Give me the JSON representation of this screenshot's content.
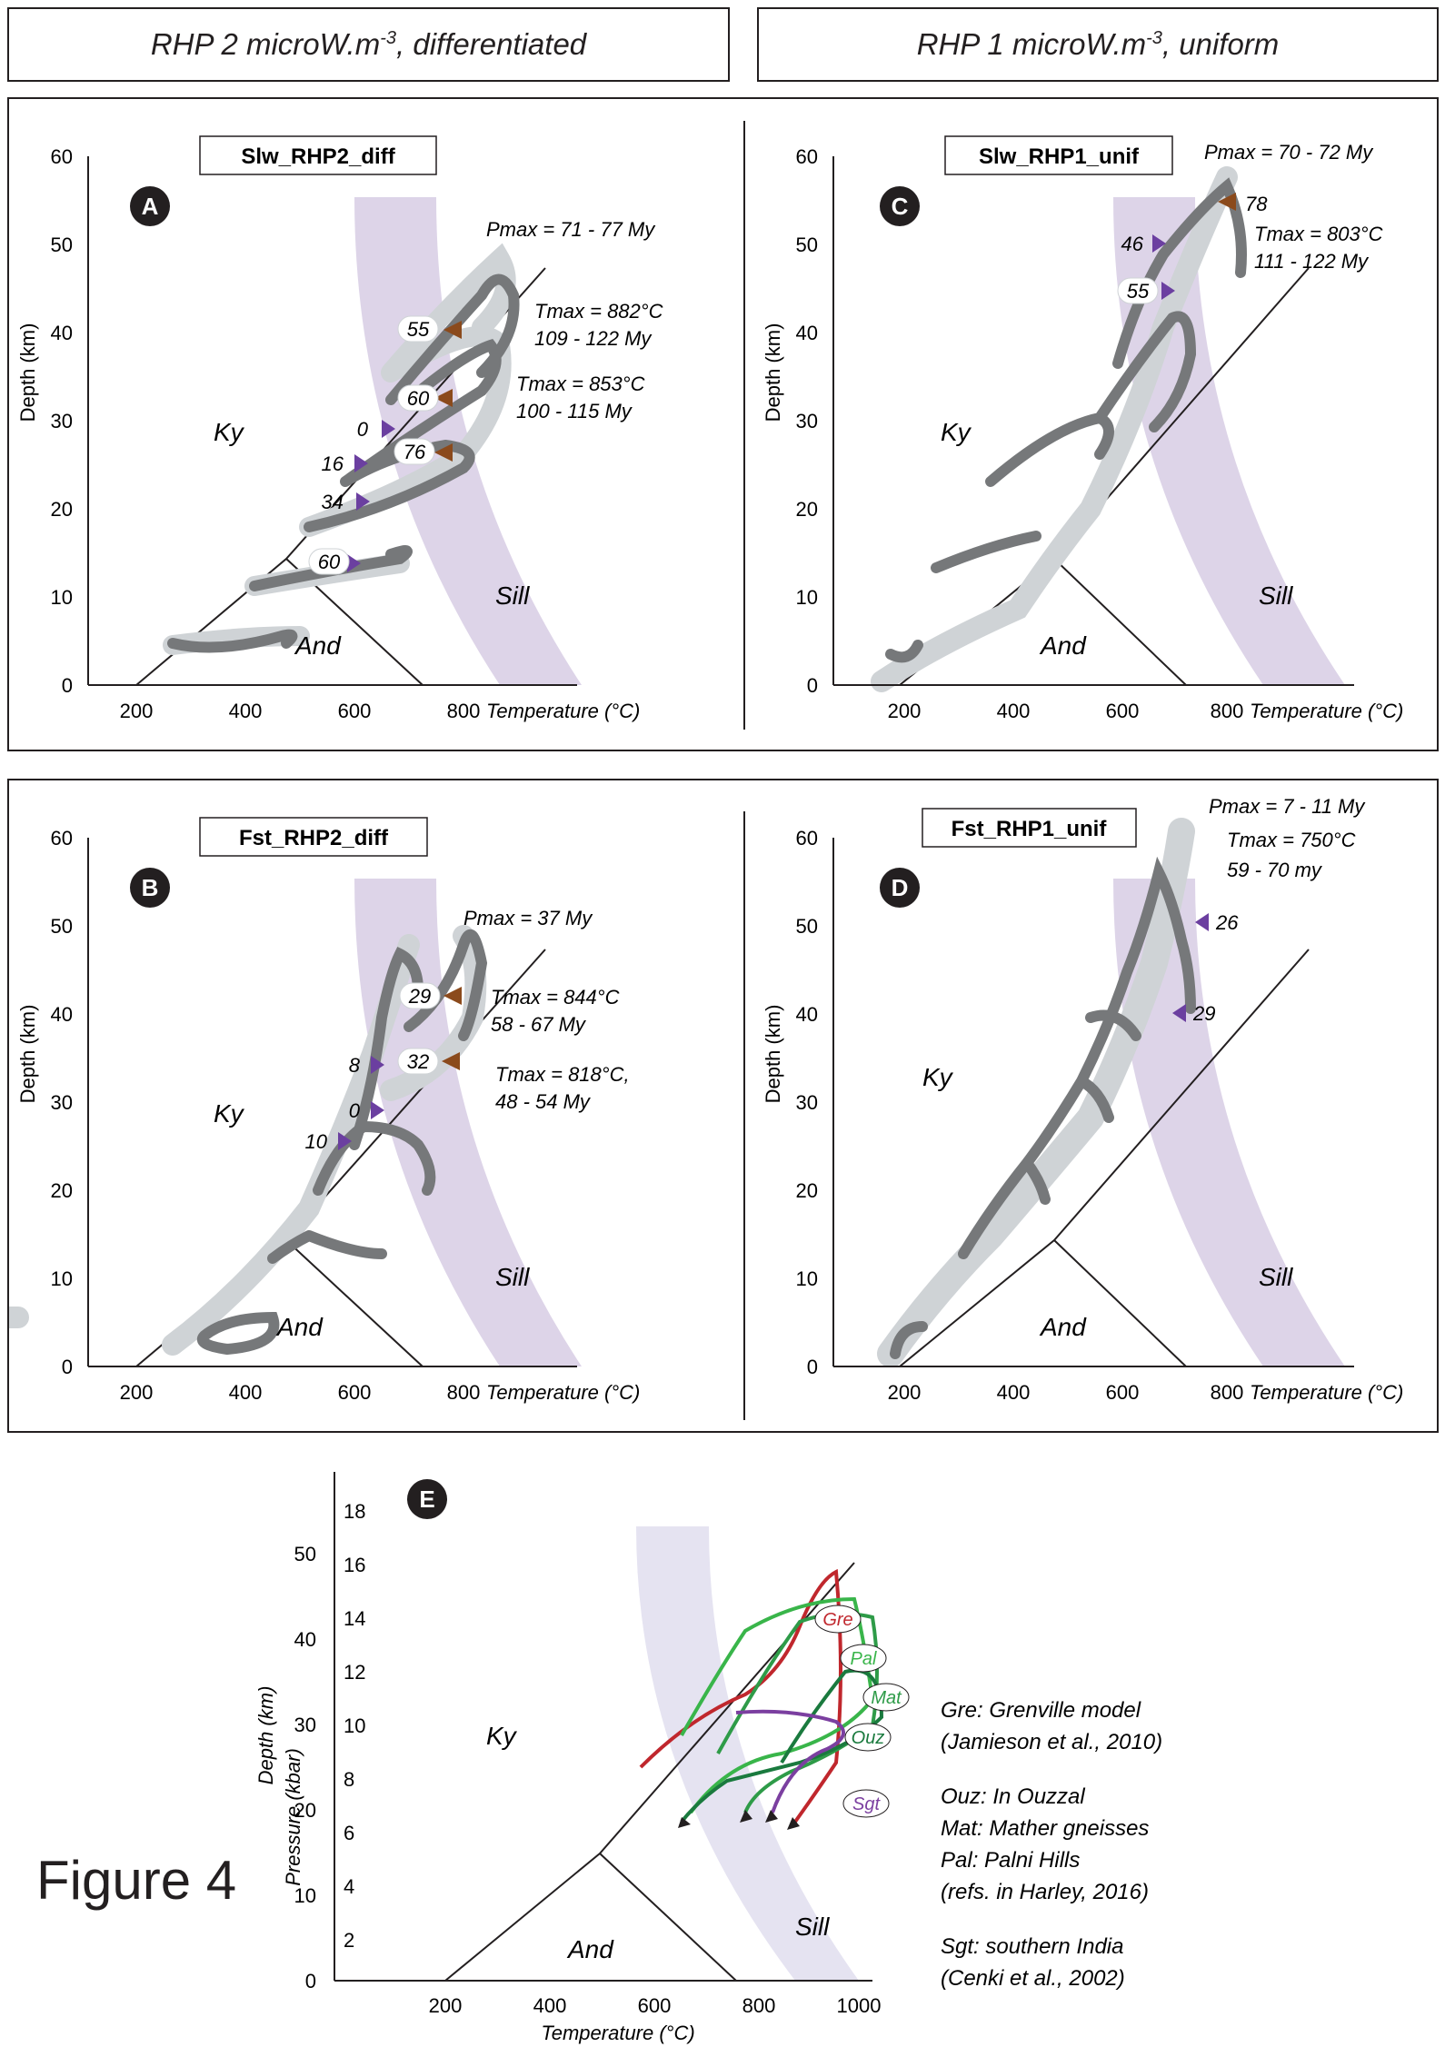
{
  "headers": [
    {
      "text": "RHP 2 microW.m",
      "sup": "-3",
      "rest": ", differentiated"
    },
    {
      "text": "RHP 1 microW.m",
      "sup": "-3",
      "rest": ", uniform"
    }
  ],
  "figure_label": "Figure 4",
  "common": {
    "ylabel": "Depth (km)",
    "xlabel": "Temperature (°C)",
    "ky": "Ky",
    "sill": "Sill",
    "and": "And",
    "x_ticks": [
      "200",
      "400",
      "600",
      "800"
    ],
    "y_ticks": [
      "0",
      "10",
      "20",
      "30",
      "40",
      "50",
      "60"
    ]
  },
  "panels": [
    {
      "id": "A",
      "model": "Slw_RHP2_diff",
      "ann": [
        "Pmax = 71 - 77 My",
        "Tmax = 882°C",
        "109 - 122 My",
        "Tmax = 853°C",
        "100 - 115 My"
      ],
      "purple": [
        "0",
        "16",
        "34"
      ],
      "bubble": [
        "55",
        "60",
        "76",
        "60"
      ]
    },
    {
      "id": "B",
      "model": "Fst_RHP2_diff",
      "ann": [
        "Pmax = 37 My",
        "Tmax = 844°C",
        "58 - 67 My",
        "Tmax = 818°C,",
        "48 - 54 My"
      ],
      "purple": [
        "8",
        "0",
        "10"
      ],
      "bubble": [
        "29",
        "32"
      ]
    },
    {
      "id": "C",
      "model": "Slw_RHP1_unif",
      "ann": [
        "Pmax = 70 - 72 My",
        "Tmax = 803°C",
        "111 - 122 My"
      ],
      "purple": [
        "46",
        "55"
      ],
      "brown": [
        "78"
      ]
    },
    {
      "id": "D",
      "model": "Fst_RHP1_unif",
      "ann": [
        "Pmax = 7 - 11 My",
        "Tmax = 750°C",
        "59 - 70 my"
      ],
      "purple": [
        "26",
        "29"
      ]
    }
  ],
  "panel_e": {
    "id": "E",
    "ylabel": "Depth (km)",
    "plabel": "Pressure (kbar)",
    "xlabel": "Temperature (°C)",
    "x_ticks": [
      "200",
      "400",
      "600",
      "800",
      "1000"
    ],
    "y_ticks": [
      "0",
      "10",
      "20",
      "30",
      "40",
      "50"
    ],
    "p_ticks": [
      "2",
      "4",
      "6",
      "8",
      "10",
      "12",
      "14",
      "16",
      "18"
    ],
    "labels": [
      "Gre",
      "Pal",
      "Mat",
      "Ouz",
      "Sgt"
    ],
    "colors": {
      "Gre": "#c0272d",
      "Pal": "#39b54a",
      "Mat": "#2e9b48",
      "Ouz": "#1a7a3e",
      "Sgt": "#7b3fa0"
    },
    "legend": [
      "Gre: Grenville model",
      "(Jamieson et al., 2010)",
      "Ouz: In Ouzzal",
      "Mat: Mather gneisses",
      "Pal: Palni Hills",
      "(refs. in Harley, 2016)",
      "Sgt: southern India",
      "(Cenki et al., 2002)"
    ]
  }
}
